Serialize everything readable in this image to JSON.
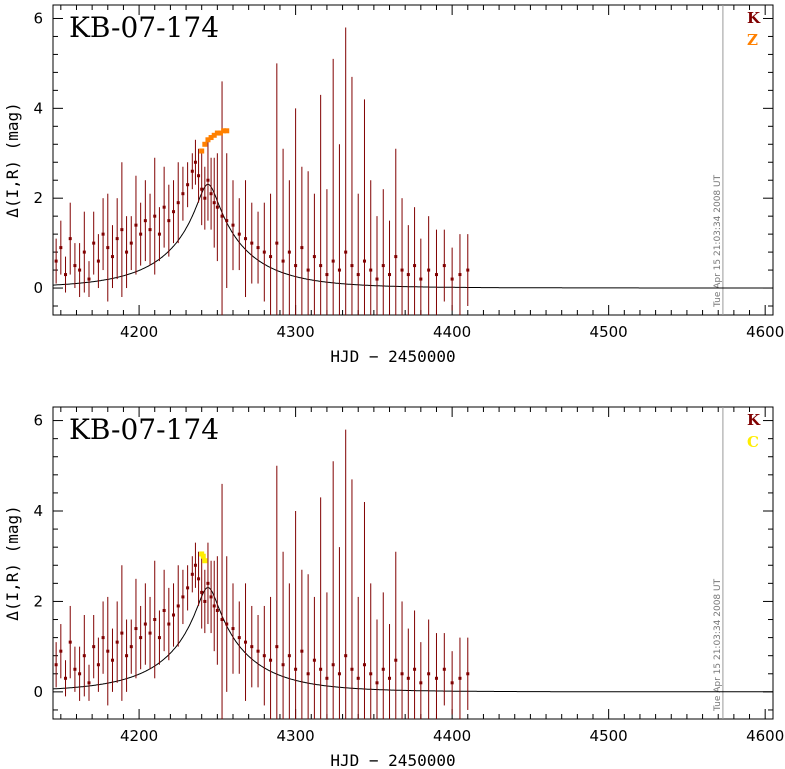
{
  "chart_data": [
    {
      "type": "scatter",
      "title": "KB-07-174",
      "xlabel": "HJD − 2450000",
      "ylabel": "Δ(I,R) (mag)",
      "xlim": [
        4145,
        4605
      ],
      "ylim": [
        -0.6,
        6.3
      ],
      "xticks": [
        4200,
        4300,
        4400,
        4500,
        4600
      ],
      "yticks": [
        0,
        2,
        4,
        6
      ],
      "stamp": "Tue Apr 15 21:03:34 2008 UT",
      "legend_position": "top-right",
      "series": [
        {
          "name": "K",
          "color": "#800000",
          "x": [
            4147,
            4150,
            4153,
            4156,
            4159,
            4162,
            4165,
            4168,
            4171,
            4174,
            4177,
            4180,
            4183,
            4186,
            4189,
            4192,
            4195,
            4198,
            4201,
            4204,
            4207,
            4210,
            4213,
            4216,
            4219,
            4222,
            4225,
            4228,
            4231,
            4234,
            4236,
            4238,
            4240,
            4242,
            4244,
            4246,
            4248,
            4250,
            4253,
            4256,
            4260,
            4264,
            4268,
            4272,
            4276,
            4280,
            4284,
            4288,
            4292,
            4296,
            4300,
            4304,
            4308,
            4312,
            4316,
            4320,
            4324,
            4328,
            4332,
            4336,
            4340,
            4344,
            4348,
            4352,
            4356,
            4360,
            4364,
            4368,
            4372,
            4376,
            4380,
            4385,
            4390,
            4395,
            4400,
            4405,
            4410
          ],
          "y": [
            0.6,
            0.9,
            0.3,
            1.1,
            0.5,
            0.4,
            0.8,
            0.2,
            1.0,
            0.6,
            1.2,
            0.9,
            0.7,
            1.1,
            1.3,
            0.8,
            1.0,
            1.4,
            1.2,
            1.5,
            1.3,
            1.6,
            1.2,
            1.8,
            1.5,
            1.7,
            1.9,
            2.1,
            2.3,
            2.6,
            2.8,
            2.5,
            2.2,
            2.0,
            2.4,
            2.1,
            1.9,
            1.8,
            1.6,
            1.5,
            1.4,
            1.2,
            1.1,
            1.0,
            0.9,
            0.8,
            0.7,
            1.0,
            0.6,
            0.8,
            0.5,
            0.9,
            0.4,
            0.7,
            0.5,
            0.3,
            0.6,
            0.4,
            0.8,
            0.5,
            0.3,
            0.6,
            0.4,
            0.2,
            0.5,
            0.3,
            0.7,
            0.4,
            0.3,
            0.5,
            0.2,
            0.4,
            0.3,
            0.5,
            0.2,
            0.3,
            0.4
          ],
          "err": [
            0.5,
            0.6,
            0.4,
            0.8,
            0.5,
            0.6,
            0.9,
            0.4,
            0.7,
            0.6,
            0.8,
            1.2,
            0.7,
            0.9,
            1.5,
            0.8,
            0.6,
            1.1,
            0.7,
            0.9,
            0.8,
            1.3,
            0.6,
            0.9,
            0.8,
            0.7,
            0.9,
            0.6,
            0.5,
            0.4,
            0.5,
            0.6,
            0.8,
            0.7,
            0.9,
            0.8,
            1.0,
            1.2,
            3.0,
            1.5,
            1.0,
            0.8,
            1.3,
            0.9,
            0.8,
            1.1,
            1.4,
            4.0,
            2.5,
            1.6,
            3.5,
            1.8,
            2.2,
            1.4,
            3.8,
            1.9,
            4.5,
            2.8,
            5.0,
            4.2,
            1.8,
            3.6,
            2.0,
            1.4,
            1.7,
            1.2,
            2.4,
            1.6,
            1.1,
            1.3,
            0.9,
            1.2,
            1.0,
            0.8,
            0.7,
            0.9,
            0.8
          ]
        },
        {
          "name": "Z",
          "color": "#ff8000",
          "x": [
            4240,
            4242,
            4244,
            4246,
            4248,
            4250,
            4252,
            4254,
            4256
          ],
          "y": [
            3.05,
            3.2,
            3.3,
            3.35,
            3.4,
            3.45,
            3.45,
            3.5,
            3.5
          ],
          "err": []
        }
      ],
      "model": {
        "t0": 4244,
        "u0": 0.12,
        "tE": 50,
        "base": 0.0
      }
    },
    {
      "type": "scatter",
      "title": "KB-07-174",
      "xlabel": "HJD − 2450000",
      "ylabel": "Δ(I,R) (mag)",
      "xlim": [
        4145,
        4605
      ],
      "ylim": [
        -0.6,
        6.3
      ],
      "xticks": [
        4200,
        4300,
        4400,
        4500,
        4600
      ],
      "yticks": [
        0,
        2,
        4,
        6
      ],
      "stamp": "Tue Apr 15 21:03:34 2008 UT",
      "legend_position": "top-right",
      "series": [
        {
          "name": "K",
          "color": "#800000",
          "x": [
            4147,
            4150,
            4153,
            4156,
            4159,
            4162,
            4165,
            4168,
            4171,
            4174,
            4177,
            4180,
            4183,
            4186,
            4189,
            4192,
            4195,
            4198,
            4201,
            4204,
            4207,
            4210,
            4213,
            4216,
            4219,
            4222,
            4225,
            4228,
            4231,
            4234,
            4236,
            4238,
            4240,
            4242,
            4244,
            4246,
            4248,
            4250,
            4253,
            4256,
            4260,
            4264,
            4268,
            4272,
            4276,
            4280,
            4284,
            4288,
            4292,
            4296,
            4300,
            4304,
            4308,
            4312,
            4316,
            4320,
            4324,
            4328,
            4332,
            4336,
            4340,
            4344,
            4348,
            4352,
            4356,
            4360,
            4364,
            4368,
            4372,
            4376,
            4380,
            4385,
            4390,
            4395,
            4400,
            4405,
            4410
          ],
          "y": [
            0.6,
            0.9,
            0.3,
            1.1,
            0.5,
            0.4,
            0.8,
            0.2,
            1.0,
            0.6,
            1.2,
            0.9,
            0.7,
            1.1,
            1.3,
            0.8,
            1.0,
            1.4,
            1.2,
            1.5,
            1.3,
            1.6,
            1.2,
            1.8,
            1.5,
            1.7,
            1.9,
            2.1,
            2.3,
            2.6,
            2.8,
            2.5,
            2.2,
            2.0,
            2.4,
            2.1,
            1.9,
            1.8,
            1.6,
            1.5,
            1.4,
            1.2,
            1.1,
            1.0,
            0.9,
            0.8,
            0.7,
            1.0,
            0.6,
            0.8,
            0.5,
            0.9,
            0.4,
            0.7,
            0.5,
            0.3,
            0.6,
            0.4,
            0.8,
            0.5,
            0.3,
            0.6,
            0.4,
            0.2,
            0.5,
            0.3,
            0.7,
            0.4,
            0.3,
            0.5,
            0.2,
            0.4,
            0.3,
            0.5,
            0.2,
            0.3,
            0.4
          ],
          "err": [
            0.5,
            0.6,
            0.4,
            0.8,
            0.5,
            0.6,
            0.9,
            0.4,
            0.7,
            0.6,
            0.8,
            1.2,
            0.7,
            0.9,
            1.5,
            0.8,
            0.6,
            1.1,
            0.7,
            0.9,
            0.8,
            1.3,
            0.6,
            0.9,
            0.8,
            0.7,
            0.9,
            0.6,
            0.5,
            0.4,
            0.5,
            0.6,
            0.8,
            0.7,
            0.9,
            0.8,
            1.0,
            1.2,
            3.0,
            1.5,
            1.0,
            0.8,
            1.3,
            0.9,
            0.8,
            1.1,
            1.4,
            4.0,
            2.5,
            1.6,
            3.5,
            1.8,
            2.2,
            1.4,
            3.8,
            1.9,
            4.5,
            2.8,
            5.0,
            4.2,
            1.8,
            3.6,
            2.0,
            1.4,
            1.7,
            1.2,
            2.4,
            1.6,
            1.1,
            1.3,
            0.9,
            1.2,
            1.0,
            0.8,
            0.7,
            0.9,
            0.8
          ]
        },
        {
          "name": "C",
          "color": "#ffee00",
          "x": [
            4240,
            4241,
            4242
          ],
          "y": [
            3.05,
            3.0,
            2.9
          ],
          "err": []
        }
      ],
      "model": {
        "t0": 4244,
        "u0": 0.12,
        "tE": 50,
        "base": 0.0
      }
    }
  ]
}
